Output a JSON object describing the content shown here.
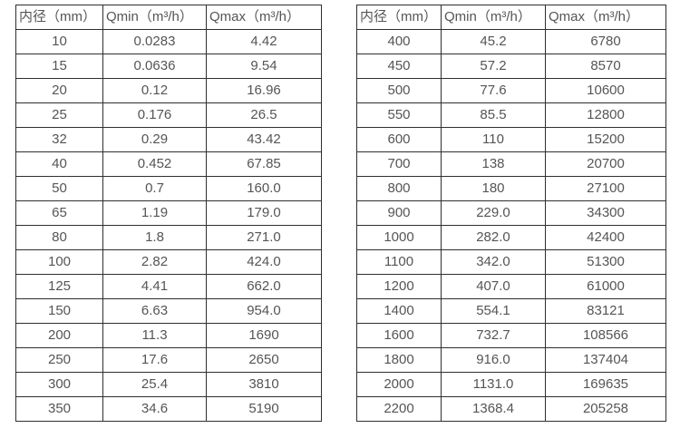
{
  "colors": {
    "background": "#ffffff",
    "border": "#2f2f2f",
    "text": "#555555"
  },
  "chart_data": [
    {
      "type": "table",
      "name": "flow-rate-table-small-diameters",
      "columns": [
        "内径（mm）",
        "Qmin（m³/h）",
        "Qmax（m³/h）"
      ],
      "rows": [
        [
          "10",
          "0.0283",
          "4.42"
        ],
        [
          "15",
          "0.0636",
          "9.54"
        ],
        [
          "20",
          "0.12",
          "16.96"
        ],
        [
          "25",
          "0.176",
          "26.5"
        ],
        [
          "32",
          "0.29",
          "43.42"
        ],
        [
          "40",
          "0.452",
          "67.85"
        ],
        [
          "50",
          "0.7",
          "160.0"
        ],
        [
          "65",
          "1.19",
          "179.0"
        ],
        [
          "80",
          "1.8",
          "271.0"
        ],
        [
          "100",
          "2.82",
          "424.0"
        ],
        [
          "125",
          "4.41",
          "662.0"
        ],
        [
          "150",
          "6.63",
          "954.0"
        ],
        [
          "200",
          "11.3",
          "1690"
        ],
        [
          "250",
          "17.6",
          "2650"
        ],
        [
          "300",
          "25.4",
          "3810"
        ],
        [
          "350",
          "34.6",
          "5190"
        ]
      ]
    },
    {
      "type": "table",
      "name": "flow-rate-table-large-diameters",
      "columns": [
        "内径（mm）",
        "Qmin（m³/h）",
        "Qmax（m³/h）"
      ],
      "rows": [
        [
          "400",
          "45.2",
          "6780"
        ],
        [
          "450",
          "57.2",
          "8570"
        ],
        [
          "500",
          "77.6",
          "10600"
        ],
        [
          "550",
          "85.5",
          "12800"
        ],
        [
          "600",
          "110",
          "15200"
        ],
        [
          "700",
          "138",
          "20700"
        ],
        [
          "800",
          "180",
          "27100"
        ],
        [
          "900",
          "229.0",
          "34300"
        ],
        [
          "1000",
          "282.0",
          "42400"
        ],
        [
          "1100",
          "342.0",
          "51300"
        ],
        [
          "1200",
          "407.0",
          "61000"
        ],
        [
          "1400",
          "554.1",
          "83121"
        ],
        [
          "1600",
          "732.7",
          "108566"
        ],
        [
          "1800",
          "916.0",
          "137404"
        ],
        [
          "2000",
          "1131.0",
          "169635"
        ],
        [
          "2200",
          "1368.4",
          "205258"
        ]
      ]
    }
  ]
}
